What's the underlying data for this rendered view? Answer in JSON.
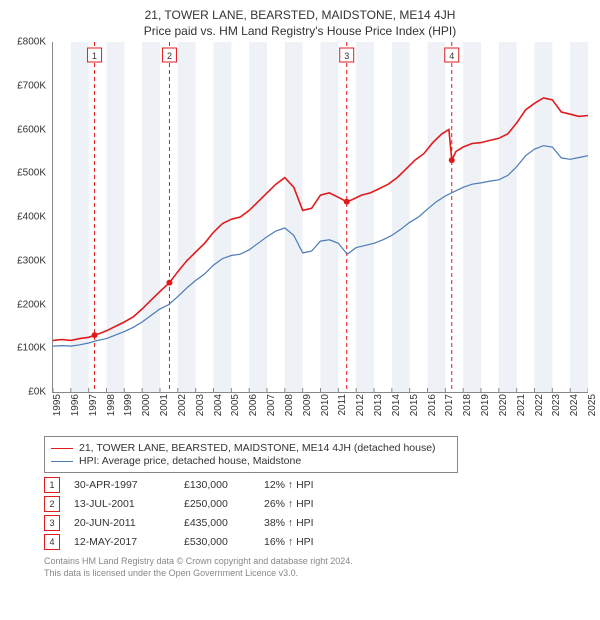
{
  "title": "21, TOWER LANE, BEARSTED, MAIDSTONE, ME14 4JH",
  "subtitle": "Price paid vs. HM Land Registry's House Price Index (HPI)",
  "chart": {
    "type": "line",
    "background_color": "#ffffff",
    "grid_band_color": "#eef2f7",
    "ylabel_prefix": "£",
    "ylabel_suffix": "K",
    "ylim": [
      0,
      800
    ],
    "ytick_step": 100,
    "xlim": [
      1995,
      2025
    ],
    "xtick_step": 1,
    "xlabel_fontsize": 10,
    "ylabel_fontsize": 10,
    "axis_color": "#888888",
    "marker_color": "#e31a1c",
    "marker_radius": 3,
    "event_line_color": "#e31a1c",
    "event_line_dash": "4 3",
    "event_label_border": "#e31a1c",
    "event_label_text_color": "#333333",
    "band_years": [
      1996,
      1998,
      2000,
      2002,
      2004,
      2006,
      2008,
      2010,
      2012,
      2014,
      2016,
      2018,
      2020,
      2022,
      2024
    ],
    "series": [
      {
        "name": "property",
        "label": "21, TOWER LANE, BEARSTED, MAIDSTONE, ME14 4JH (detached house)",
        "color": "#e31a1c",
        "line_width": 1.6,
        "points": [
          [
            1995.0,
            118
          ],
          [
            1995.5,
            120
          ],
          [
            1996.0,
            118
          ],
          [
            1996.5,
            122
          ],
          [
            1997.0,
            125
          ],
          [
            1997.33,
            130
          ],
          [
            1997.7,
            135
          ],
          [
            1998.0,
            140
          ],
          [
            1998.5,
            150
          ],
          [
            1999.0,
            160
          ],
          [
            1999.5,
            172
          ],
          [
            2000.0,
            190
          ],
          [
            2000.5,
            210
          ],
          [
            2001.0,
            230
          ],
          [
            2001.53,
            250
          ],
          [
            2002.0,
            275
          ],
          [
            2002.5,
            300
          ],
          [
            2003.0,
            320
          ],
          [
            2003.5,
            340
          ],
          [
            2004.0,
            365
          ],
          [
            2004.5,
            385
          ],
          [
            2005.0,
            395
          ],
          [
            2005.5,
            400
          ],
          [
            2006.0,
            415
          ],
          [
            2006.5,
            435
          ],
          [
            2007.0,
            455
          ],
          [
            2007.5,
            475
          ],
          [
            2008.0,
            490
          ],
          [
            2008.5,
            468
          ],
          [
            2009.0,
            415
          ],
          [
            2009.5,
            420
          ],
          [
            2010.0,
            450
          ],
          [
            2010.5,
            455
          ],
          [
            2011.0,
            445
          ],
          [
            2011.47,
            435
          ],
          [
            2011.8,
            440
          ],
          [
            2012.3,
            450
          ],
          [
            2012.8,
            455
          ],
          [
            2013.3,
            465
          ],
          [
            2013.8,
            475
          ],
          [
            2014.3,
            490
          ],
          [
            2014.8,
            510
          ],
          [
            2015.3,
            530
          ],
          [
            2015.8,
            545
          ],
          [
            2016.3,
            570
          ],
          [
            2016.8,
            590
          ],
          [
            2017.2,
            600
          ],
          [
            2017.36,
            530
          ],
          [
            2017.6,
            550
          ],
          [
            2018.0,
            560
          ],
          [
            2018.5,
            568
          ],
          [
            2019.0,
            570
          ],
          [
            2019.5,
            575
          ],
          [
            2020.0,
            580
          ],
          [
            2020.5,
            590
          ],
          [
            2021.0,
            615
          ],
          [
            2021.5,
            645
          ],
          [
            2022.0,
            660
          ],
          [
            2022.5,
            672
          ],
          [
            2023.0,
            668
          ],
          [
            2023.5,
            640
          ],
          [
            2024.0,
            635
          ],
          [
            2024.5,
            630
          ],
          [
            2025.0,
            632
          ]
        ]
      },
      {
        "name": "hpi",
        "label": "HPI: Average price, detached house, Maidstone",
        "color": "#4a7bb7",
        "line_width": 1.2,
        "points": [
          [
            1995.0,
            105
          ],
          [
            1995.5,
            106
          ],
          [
            1996.0,
            105
          ],
          [
            1996.5,
            108
          ],
          [
            1997.0,
            112
          ],
          [
            1997.5,
            118
          ],
          [
            1998.0,
            122
          ],
          [
            1998.5,
            130
          ],
          [
            1999.0,
            138
          ],
          [
            1999.5,
            148
          ],
          [
            2000.0,
            160
          ],
          [
            2000.5,
            175
          ],
          [
            2001.0,
            190
          ],
          [
            2001.5,
            200
          ],
          [
            2002.0,
            218
          ],
          [
            2002.5,
            238
          ],
          [
            2003.0,
            255
          ],
          [
            2003.5,
            270
          ],
          [
            2004.0,
            290
          ],
          [
            2004.5,
            305
          ],
          [
            2005.0,
            312
          ],
          [
            2005.5,
            315
          ],
          [
            2006.0,
            325
          ],
          [
            2006.5,
            340
          ],
          [
            2007.0,
            355
          ],
          [
            2007.5,
            368
          ],
          [
            2008.0,
            375
          ],
          [
            2008.5,
            358
          ],
          [
            2009.0,
            318
          ],
          [
            2009.5,
            322
          ],
          [
            2010.0,
            345
          ],
          [
            2010.5,
            348
          ],
          [
            2011.0,
            340
          ],
          [
            2011.5,
            315
          ],
          [
            2012.0,
            330
          ],
          [
            2012.5,
            335
          ],
          [
            2013.0,
            340
          ],
          [
            2013.5,
            348
          ],
          [
            2014.0,
            358
          ],
          [
            2014.5,
            372
          ],
          [
            2015.0,
            388
          ],
          [
            2015.5,
            400
          ],
          [
            2016.0,
            418
          ],
          [
            2016.5,
            435
          ],
          [
            2017.0,
            448
          ],
          [
            2017.5,
            458
          ],
          [
            2018.0,
            468
          ],
          [
            2018.5,
            475
          ],
          [
            2019.0,
            478
          ],
          [
            2019.5,
            482
          ],
          [
            2020.0,
            485
          ],
          [
            2020.5,
            495
          ],
          [
            2021.0,
            515
          ],
          [
            2021.5,
            540
          ],
          [
            2022.0,
            555
          ],
          [
            2022.5,
            563
          ],
          [
            2023.0,
            560
          ],
          [
            2023.5,
            535
          ],
          [
            2024.0,
            532
          ],
          [
            2024.5,
            536
          ],
          [
            2025.0,
            540
          ]
        ]
      }
    ],
    "events": [
      {
        "n": "1",
        "year": 1997.33,
        "y": 130
      },
      {
        "n": "2",
        "year": 2001.53,
        "y": 250
      },
      {
        "n": "3",
        "year": 2011.47,
        "y": 435
      },
      {
        "n": "4",
        "year": 2017.36,
        "y": 530
      }
    ]
  },
  "legend": {
    "border_color": "#888888"
  },
  "sales": [
    {
      "n": "1",
      "date": "30-APR-1997",
      "price": "£130,000",
      "diff": "12% ↑ HPI"
    },
    {
      "n": "2",
      "date": "13-JUL-2001",
      "price": "£250,000",
      "diff": "26% ↑ HPI"
    },
    {
      "n": "3",
      "date": "20-JUN-2011",
      "price": "£435,000",
      "diff": "38% ↑ HPI"
    },
    {
      "n": "4",
      "date": "12-MAY-2017",
      "price": "£530,000",
      "diff": "16% ↑ HPI"
    }
  ],
  "sales_marker_color": "#e31a1c",
  "footer": {
    "line1": "Contains HM Land Registry data © Crown copyright and database right 2024.",
    "line2": "This data is licensed under the Open Government Licence v3.0.",
    "color": "#888888"
  }
}
